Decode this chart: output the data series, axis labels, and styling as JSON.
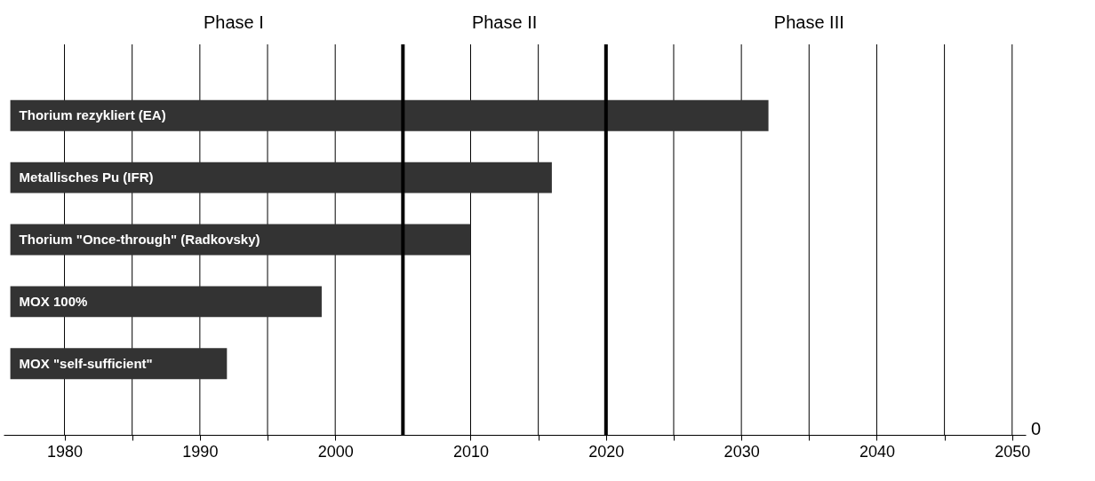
{
  "chart_data": {
    "type": "bar",
    "orientation": "horizontal",
    "categories": [
      "Thorium rezykliert (EA)",
      "Metallisches Pu (IFR)",
      "Thorium \"Once-through\" (Radkovsky)",
      "MOX 100%",
      "MOX \"self-sufficient\""
    ],
    "base": [
      1976,
      1976,
      1976,
      1976,
      1976
    ],
    "values": [
      56,
      40,
      34,
      23,
      16
    ],
    "color": "#333333",
    "xlim": [
      1975.5,
      2051
    ],
    "xticks": [
      1980,
      {
        "value": 1985,
        "label": null
      },
      1990,
      {
        "value": 1995,
        "label": null
      },
      2000,
      2010,
      {
        "value": 2015,
        "label": null
      },
      2020,
      {
        "value": 2025,
        "label": null
      },
      2030,
      {
        "value": 2035,
        "label": null
      },
      2040,
      {
        "value": 2045,
        "label": null
      },
      2050
    ],
    "grid": "x",
    "ref_lines": [
      {
        "axis": "x",
        "value": 2005
      },
      {
        "axis": "x",
        "value": 2020
      }
    ],
    "annotations": [
      "Phase I",
      "Phase II",
      "Phase III",
      "0"
    ]
  }
}
